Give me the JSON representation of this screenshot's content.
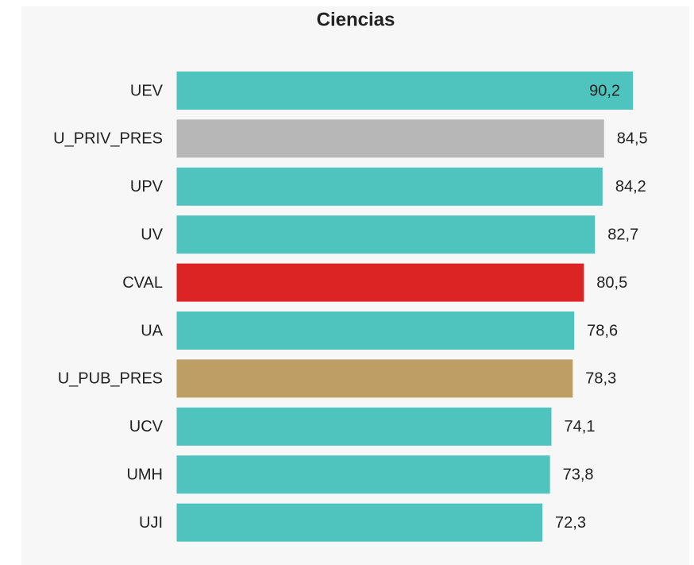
{
  "chart_data": {
    "type": "bar",
    "orientation": "horizontal",
    "title": "Ciencias",
    "categories": [
      "UEV",
      "U_PRIV_PRES",
      "UPV",
      "UV",
      "CVAL",
      "UA",
      "U_PUB_PRES",
      "UCV",
      "UMH",
      "UJI"
    ],
    "values": [
      90.2,
      84.5,
      84.2,
      82.7,
      80.5,
      78.6,
      78.3,
      74.1,
      73.8,
      72.3
    ],
    "value_labels": [
      "90,2",
      "84,5",
      "84,2",
      "82,7",
      "80,5",
      "78,6",
      "78,3",
      "74,1",
      "73,8",
      "72,3"
    ],
    "colors": [
      "#4fc3be",
      "#b7b7b7",
      "#4fc3be",
      "#4fc3be",
      "#dc2424",
      "#4fc3be",
      "#bf9e66",
      "#4fc3be",
      "#4fc3be",
      "#4fc3be"
    ],
    "xlim": [
      0,
      100
    ]
  }
}
